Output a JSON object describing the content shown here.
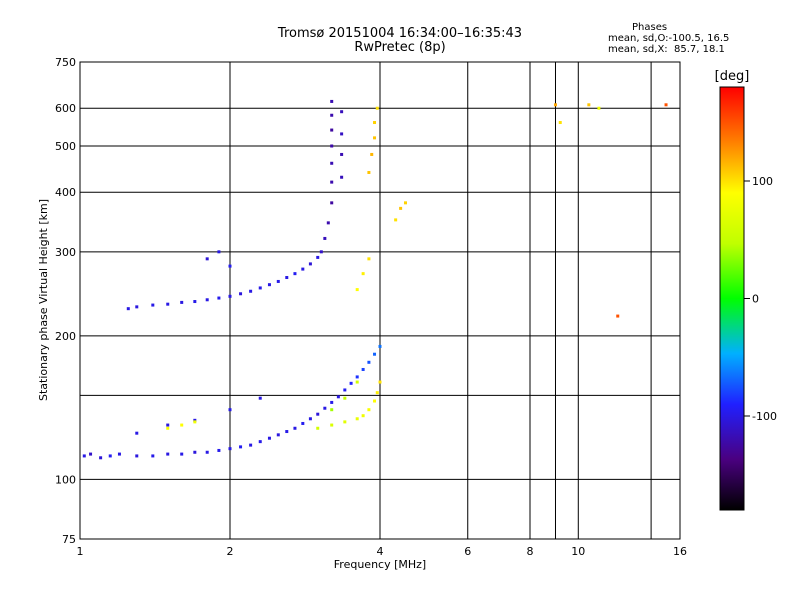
{
  "header": {
    "title_line1": "Tromsø 20151004 16:34:00–16:35:43",
    "title_line2": "RwPretec (8p)"
  },
  "phases": {
    "heading": "Phases",
    "line_o": "mean, sd,O:-100.5, 16.5",
    "line_x": "mean, sd,X:  85.7, 18.1"
  },
  "chart_data": {
    "type": "scatter",
    "xlabel": "Frequency [MHz]",
    "ylabel": "Stationary phase Virtual Height [km]",
    "x_scale": "log",
    "y_scale": "log",
    "xlim": [
      1,
      16
    ],
    "ylim": [
      75,
      750
    ],
    "x_major_ticks": [
      1,
      2,
      4,
      8,
      16
    ],
    "x_minor_ticks": [
      6,
      10
    ],
    "x_tick_labels": [
      "1",
      "2",
      "4",
      "6",
      "8",
      "10",
      "16"
    ],
    "x_tick_values": [
      1,
      2,
      4,
      6,
      8,
      10,
      16
    ],
    "y_tick_labels": [
      "75",
      "100",
      "200",
      "300",
      "400",
      "500",
      "600",
      "750"
    ],
    "y_tick_values": [
      75,
      100,
      200,
      300,
      400,
      500,
      600,
      750
    ],
    "grid": true,
    "colorbar": {
      "label": "[deg]",
      "tick_labels": [
        "100",
        "0",
        "-100"
      ],
      "tick_values": [
        100,
        0,
        -100
      ],
      "range": [
        -180,
        180
      ]
    },
    "series": [
      {
        "points": [
          [
            1.02,
            112,
            -100
          ],
          [
            1.05,
            113,
            -110
          ],
          [
            1.1,
            111,
            -105
          ],
          [
            1.15,
            112,
            -95
          ],
          [
            1.2,
            113,
            -100
          ],
          [
            1.3,
            112,
            -102
          ],
          [
            1.4,
            112,
            -98
          ],
          [
            1.5,
            113,
            -101
          ],
          [
            1.6,
            113,
            -99
          ],
          [
            1.7,
            114,
            -103
          ],
          [
            1.8,
            114,
            -100
          ],
          [
            1.9,
            115,
            -97
          ],
          [
            2.0,
            116,
            -100
          ],
          [
            2.1,
            117,
            -95
          ],
          [
            2.2,
            118,
            -100
          ],
          [
            2.3,
            120,
            -98
          ],
          [
            2.4,
            122,
            -100
          ],
          [
            2.5,
            124,
            -102
          ],
          [
            2.6,
            126,
            -99
          ],
          [
            2.7,
            128,
            -100
          ],
          [
            2.8,
            131,
            -96
          ],
          [
            2.9,
            134,
            -100
          ],
          [
            3.0,
            137,
            -104
          ],
          [
            3.1,
            141,
            -100
          ],
          [
            3.2,
            145,
            -98
          ],
          [
            3.3,
            149,
            -100
          ],
          [
            3.4,
            154,
            -95
          ],
          [
            3.5,
            159,
            -90
          ],
          [
            3.6,
            164,
            -85
          ],
          [
            3.7,
            170,
            -80
          ],
          [
            3.8,
            176,
            -75
          ],
          [
            3.9,
            183,
            -70
          ],
          [
            4.0,
            190,
            -65
          ],
          [
            1.25,
            228,
            -100
          ],
          [
            1.3,
            230,
            -102
          ],
          [
            1.4,
            232,
            -99
          ],
          [
            1.5,
            233,
            -100
          ],
          [
            1.6,
            235,
            -101
          ],
          [
            1.7,
            236,
            -98
          ],
          [
            1.8,
            238,
            -100
          ],
          [
            1.9,
            240,
            -97
          ],
          [
            2.0,
            242,
            -100
          ],
          [
            2.1,
            245,
            -103
          ],
          [
            2.2,
            248,
            -100
          ],
          [
            2.3,
            252,
            -99
          ],
          [
            2.4,
            256,
            -100
          ],
          [
            2.5,
            260,
            -98
          ],
          [
            2.6,
            265,
            -100
          ],
          [
            2.7,
            270,
            -95
          ],
          [
            2.8,
            276,
            -100
          ],
          [
            2.9,
            283,
            -105
          ],
          [
            3.0,
            292,
            -100
          ],
          [
            3.05,
            300,
            -110
          ],
          [
            3.1,
            320,
            -115
          ],
          [
            3.15,
            345,
            -120
          ],
          [
            3.2,
            380,
            -125
          ],
          [
            3.2,
            420,
            -120
          ],
          [
            3.2,
            460,
            -118
          ],
          [
            3.2,
            500,
            -122
          ],
          [
            3.2,
            540,
            -125
          ],
          [
            3.2,
            580,
            -120
          ],
          [
            3.2,
            620,
            -118
          ],
          [
            3.35,
            430,
            -115
          ],
          [
            3.35,
            480,
            -118
          ],
          [
            3.35,
            530,
            -112
          ],
          [
            3.35,
            590,
            -115
          ],
          [
            1.3,
            125,
            -100
          ],
          [
            1.5,
            130,
            -102
          ],
          [
            1.7,
            133,
            -100
          ],
          [
            2.0,
            140,
            -98
          ],
          [
            2.3,
            148,
            -100
          ],
          [
            1.9,
            300,
            -100
          ],
          [
            1.8,
            290,
            -105
          ],
          [
            2.0,
            280,
            -95
          ]
        ]
      },
      {
        "points": [
          [
            3.0,
            128,
            60
          ],
          [
            3.2,
            130,
            65
          ],
          [
            3.4,
            132,
            70
          ],
          [
            3.6,
            134,
            75
          ],
          [
            3.7,
            136,
            80
          ],
          [
            3.8,
            140,
            85
          ],
          [
            3.9,
            146,
            90
          ],
          [
            3.95,
            152,
            95
          ],
          [
            4.0,
            160,
            100
          ],
          [
            3.6,
            250,
            90
          ],
          [
            3.7,
            270,
            95
          ],
          [
            3.8,
            290,
            100
          ],
          [
            3.8,
            440,
            110
          ],
          [
            3.85,
            480,
            115
          ],
          [
            3.9,
            520,
            110
          ],
          [
            3.9,
            560,
            105
          ],
          [
            3.95,
            600,
            100
          ],
          [
            4.3,
            350,
            100
          ],
          [
            4.4,
            370,
            110
          ],
          [
            4.5,
            380,
            105
          ],
          [
            3.2,
            140,
            40
          ],
          [
            3.4,
            148,
            50
          ],
          [
            3.6,
            160,
            60
          ],
          [
            1.6,
            130,
            90
          ],
          [
            1.7,
            132,
            80
          ],
          [
            1.5,
            128,
            85
          ],
          [
            9.0,
            610,
            120
          ],
          [
            10.5,
            610,
            110
          ],
          [
            11.0,
            600,
            80
          ],
          [
            9.2,
            560,
            100
          ],
          [
            15.0,
            610,
            150
          ],
          [
            12.0,
            220,
            150
          ]
        ]
      }
    ]
  }
}
